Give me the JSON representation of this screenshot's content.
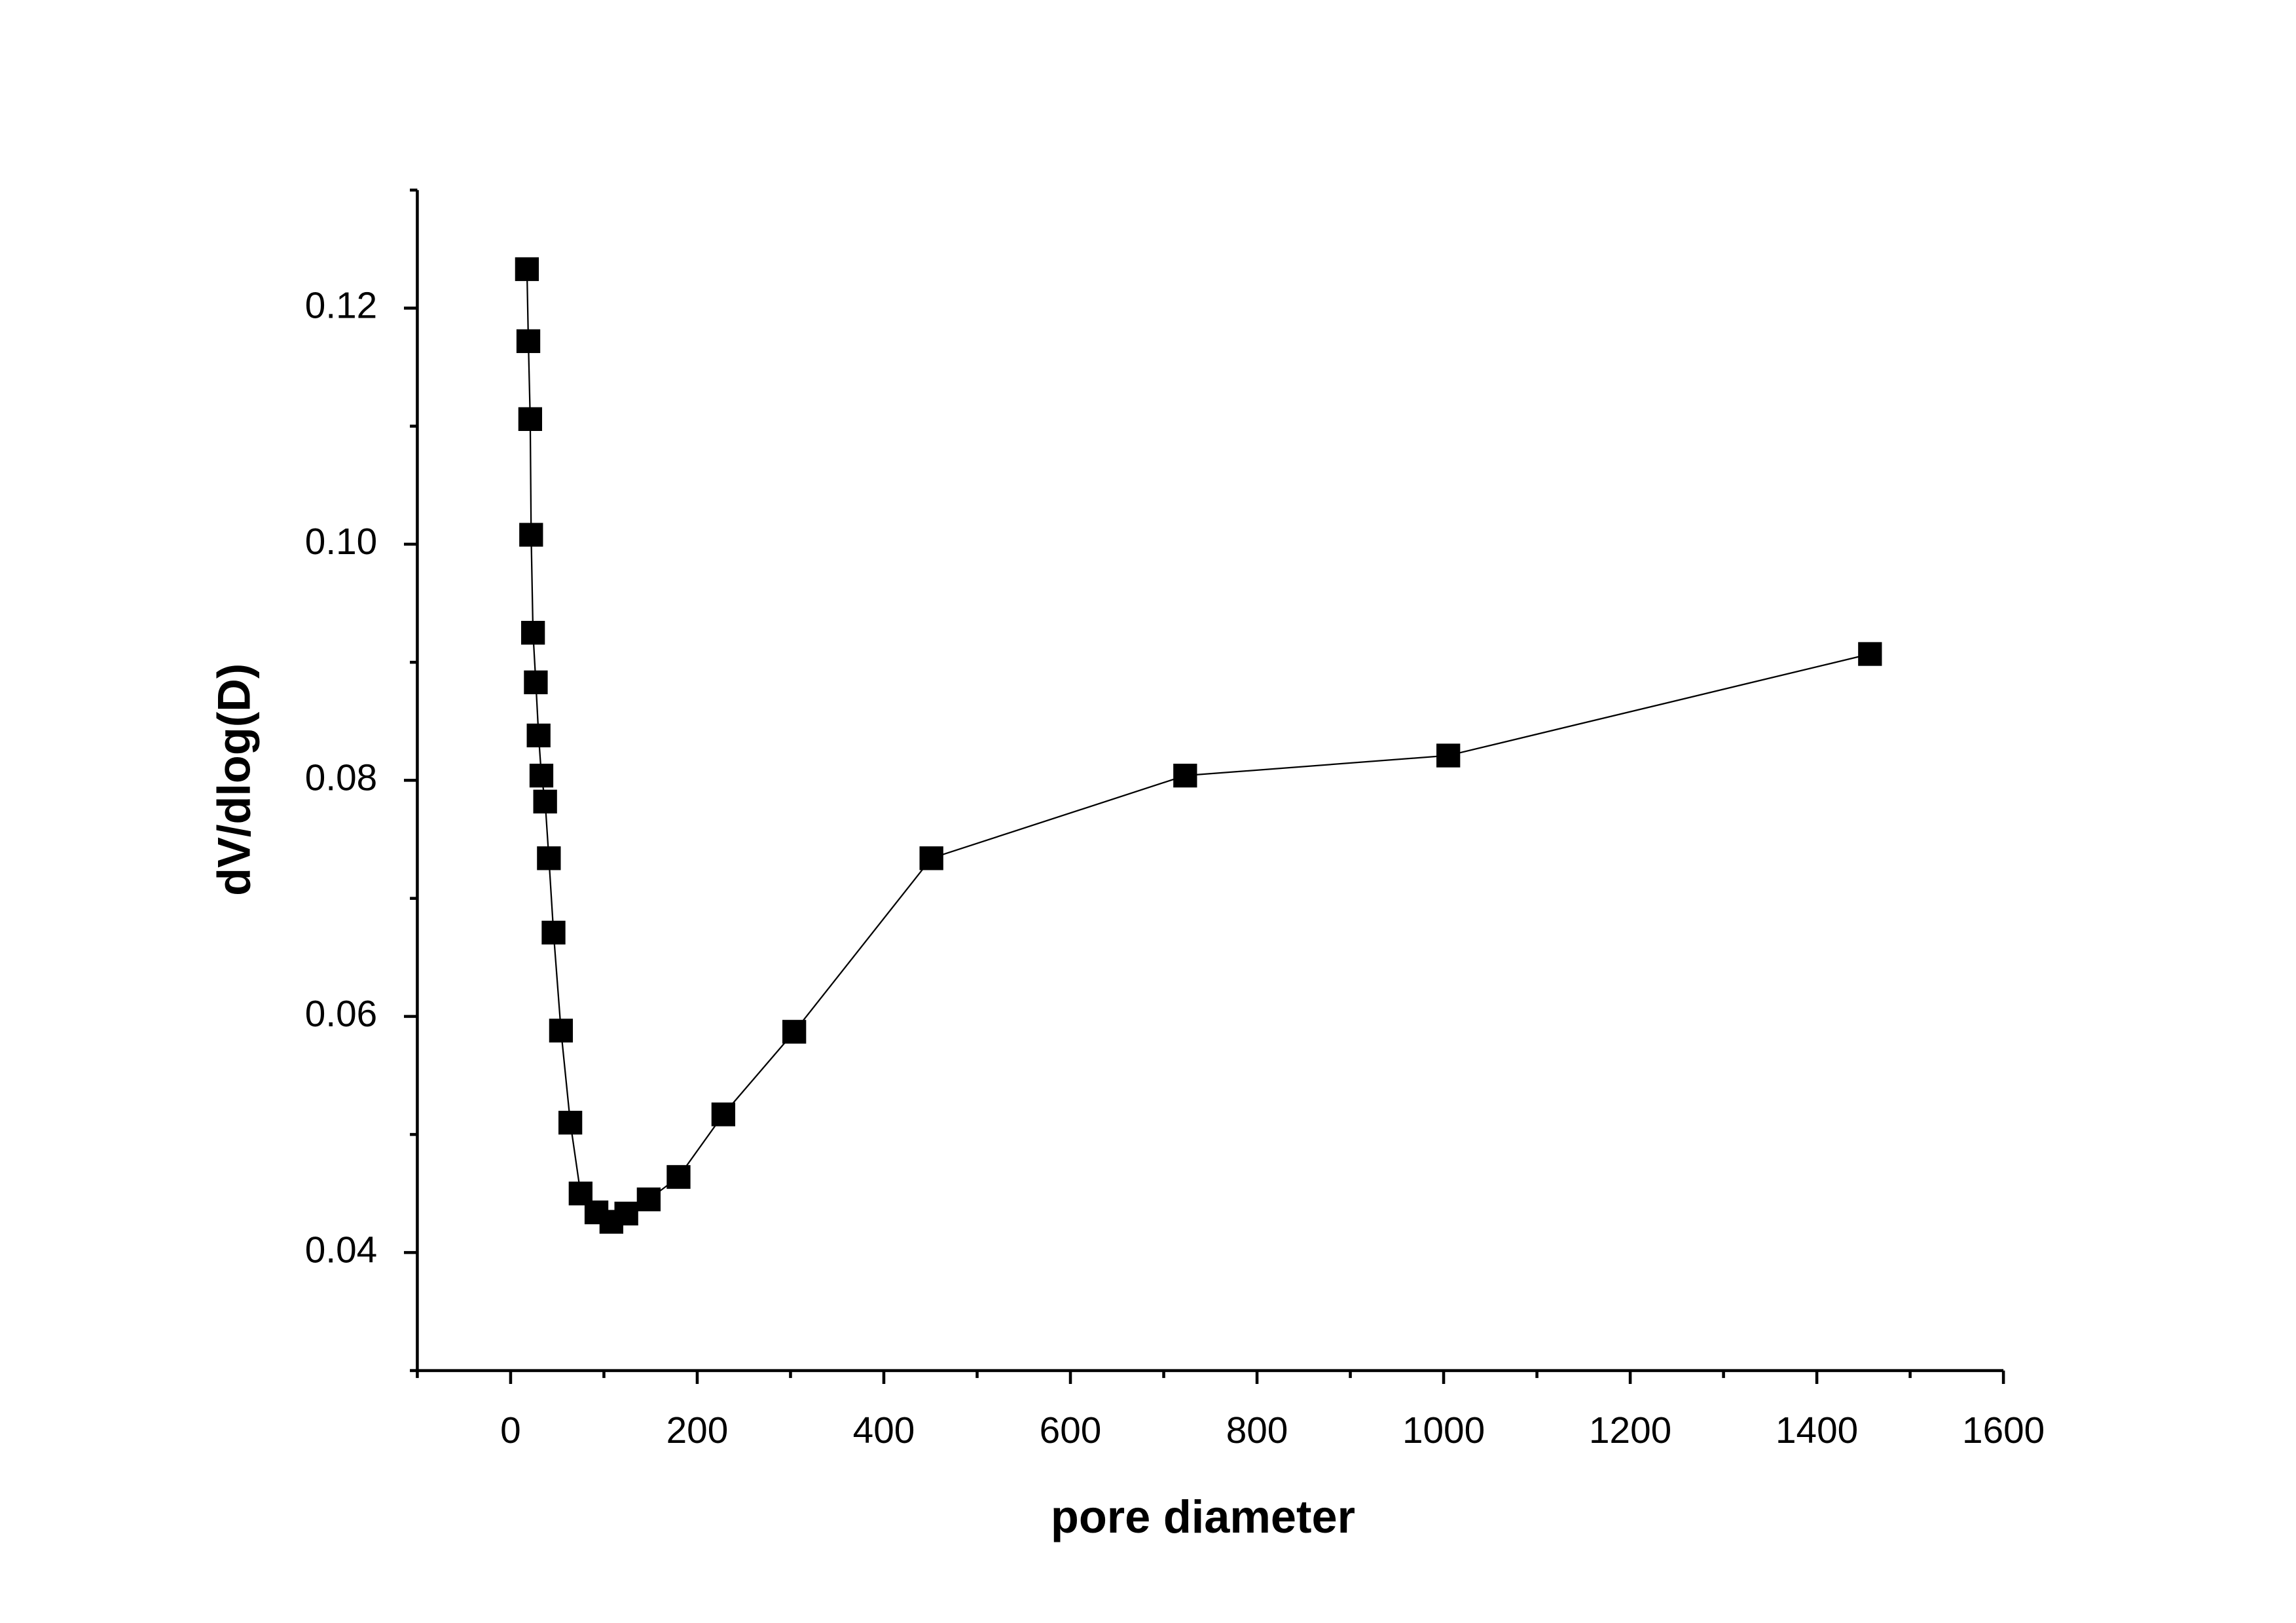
{
  "chart_data": {
    "type": "line",
    "x_label": "pore diameter",
    "y_label": "dV/dlog(D)",
    "xlim": [
      -100,
      1600
    ],
    "ylim": [
      0.03,
      0.13
    ],
    "xticks": [
      0,
      200,
      400,
      600,
      800,
      1000,
      1200,
      1400,
      1600
    ],
    "yticks": [
      {
        "value": 0.04,
        "label": "0.04"
      },
      {
        "value": 0.06,
        "label": "0.06"
      },
      {
        "value": 0.08,
        "label": "0.08"
      },
      {
        "value": 0.1,
        "label": "0.10"
      },
      {
        "value": 0.12,
        "label": "0.12"
      }
    ],
    "grid": false,
    "marker": "square",
    "series": [
      {
        "color": "#000000",
        "x": [
          17.5,
          19,
          21,
          22,
          24,
          27,
          30,
          33,
          37,
          41,
          46,
          54,
          64,
          75,
          92,
          108,
          124,
          148,
          180,
          228,
          304,
          451,
          723,
          1005,
          1457
        ],
        "values": [
          0.1233,
          0.1172,
          0.1106,
          0.1008,
          0.0925,
          0.0883,
          0.0838,
          0.0804,
          0.0782,
          0.0734,
          0.0671,
          0.0588,
          0.051,
          0.045,
          0.0434,
          0.0426,
          0.0433,
          0.0445,
          0.0464,
          0.0517,
          0.0587,
          0.0734,
          0.0804,
          0.0821,
          0.0907
        ]
      }
    ]
  }
}
